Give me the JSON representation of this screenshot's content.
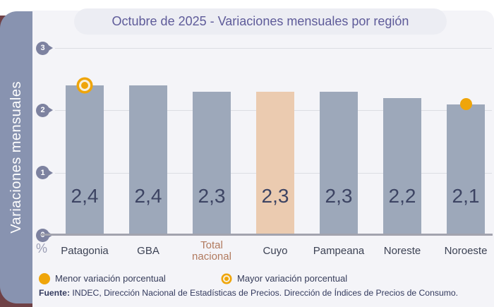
{
  "title": {
    "text": "Octubre de 2025 - Variaciones mensuales por región"
  },
  "sidebar": {
    "label": "Variaciones mensuales"
  },
  "axis": {
    "unit_symbol": "%"
  },
  "legend": {
    "min_label": "Menor variación porcentual",
    "max_label": "Mayor variación porcentual"
  },
  "source": {
    "prefix": "Fuente:",
    "text": " INDEC, Dirección Nacional de Estadísticas de Precios. Dirección de Índices de Precios de Consumo."
  },
  "colors": {
    "bar": "#9da8ba",
    "highlight_bar": "#ebcbb0",
    "marker_orange": "#efa50a",
    "side_band": "#8893b0",
    "accent_label": "#b17a5e",
    "title_text": "#5e5b99",
    "card_background": "#f4f4f8"
  },
  "chart_data": {
    "type": "bar",
    "title": "Octubre de 2025 - Variaciones mensuales por región",
    "ylabel": "Variaciones mensuales",
    "unit": "%",
    "categories": [
      "Patagonia",
      "GBA",
      "Total nacional",
      "Cuyo",
      "Pampeana",
      "Noreste",
      "Noroeste"
    ],
    "values": [
      2.4,
      2.4,
      2.3,
      2.3,
      2.3,
      2.2,
      2.1
    ],
    "value_labels": [
      "2,4",
      "2,4",
      "2,3",
      "2,3",
      "2,3",
      "2,2",
      "2,1"
    ],
    "ylim": [
      0,
      3
    ],
    "yticks": [
      0,
      1,
      2,
      3
    ],
    "grid": true,
    "legend_position": "bottom",
    "highlight_bar_index": 3,
    "accent_category_index": 2,
    "max_marker_index": 0,
    "min_marker_index": 6,
    "annotations": {
      "max_marker_meaning": "Mayor variación porcentual",
      "min_marker_meaning": "Menor variación porcentual"
    }
  }
}
